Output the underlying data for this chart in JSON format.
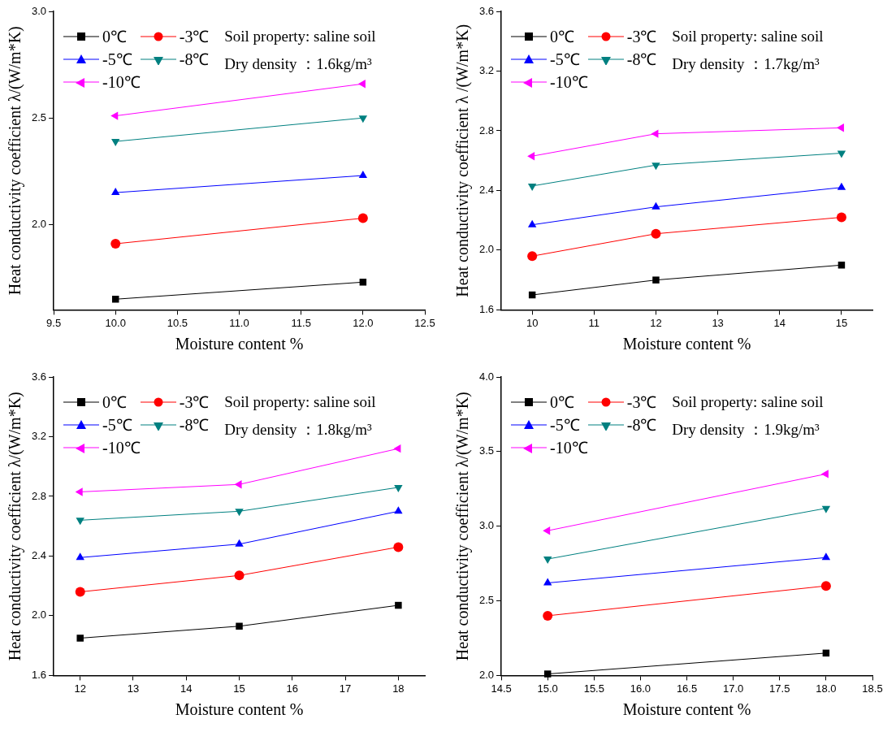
{
  "chart_data": [
    {
      "type": "line",
      "xlabel": "Moisture content %",
      "ylabel": "Heat conductivity coefficient λ/(W/m*K)",
      "x": [
        10,
        12
      ],
      "xlim": [
        9.5,
        12.5
      ],
      "xticks": [
        {
          "value": 9.5,
          "label": "9.5"
        },
        {
          "value": 10,
          "label": "10.0"
        },
        {
          "value": 10.5,
          "label": "10.5"
        },
        {
          "value": 11,
          "label": "11.0"
        },
        {
          "value": 11.5,
          "label": "11.5"
        },
        {
          "value": 12,
          "label": "12.0"
        },
        {
          "value": 12.5,
          "label": "12.5"
        }
      ],
      "ylim": [
        1.6,
        3.0
      ],
      "yticks": [
        {
          "value": 2,
          "label": "2.0"
        },
        {
          "value": 2.5,
          "label": "2.5"
        },
        {
          "value": 3,
          "label": "3.0"
        }
      ],
      "legend": "top left",
      "annotations": [
        "Soil property: saline soil",
        "Dry density ：1.6kg/m³"
      ],
      "series": [
        {
          "name": "0℃",
          "color": "#000000",
          "marker": "square",
          "values": [
            1.65,
            1.73
          ]
        },
        {
          "name": "-3℃",
          "color": "#ff0000",
          "marker": "circle",
          "values": [
            1.91,
            2.03
          ]
        },
        {
          "name": "-5℃",
          "color": "#0000ff",
          "marker": "triangle",
          "values": [
            2.15,
            2.23
          ]
        },
        {
          "name": "-8℃",
          "color": "#008080",
          "marker": "triangle-down",
          "values": [
            2.39,
            2.5
          ]
        },
        {
          "name": "-10℃",
          "color": "#ff00ff",
          "marker": "triangle-left",
          "values": [
            2.51,
            2.66
          ]
        }
      ]
    },
    {
      "type": "line",
      "xlabel": "Moisture content %",
      "ylabel": "Heat conductivity coefficient λ /(W/m*K)",
      "x": [
        10,
        12,
        15
      ],
      "xlim": [
        9.5,
        15.5
      ],
      "xticks": [
        10,
        11,
        12,
        13,
        14,
        15
      ],
      "ylim": [
        1.6,
        3.6
      ],
      "yticks": [
        1.6,
        {
          "value": 2,
          "label": "2.0"
        },
        2.4,
        2.8,
        3.2,
        3.6
      ],
      "legend": "top left",
      "annotations": [
        "Soil property: saline soil",
        "Dry density ：1.7kg/m³"
      ],
      "series": [
        {
          "name": "0℃",
          "color": "#000000",
          "marker": "square",
          "values": [
            1.7,
            1.8,
            1.9
          ]
        },
        {
          "name": "-3℃",
          "color": "#ff0000",
          "marker": "circle",
          "values": [
            1.96,
            2.11,
            2.22
          ]
        },
        {
          "name": "-5℃",
          "color": "#0000ff",
          "marker": "triangle",
          "values": [
            2.17,
            2.29,
            2.42
          ]
        },
        {
          "name": "-8℃",
          "color": "#008080",
          "marker": "triangle-down",
          "values": [
            2.43,
            2.57,
            2.65
          ]
        },
        {
          "name": "-10℃",
          "color": "#ff00ff",
          "marker": "triangle-left",
          "values": [
            2.63,
            2.78,
            2.82
          ]
        }
      ]
    },
    {
      "type": "line",
      "xlabel": "Moisture content %",
      "ylabel": "Heat conductivity coefficient λ/(W/m*K)",
      "x": [
        12,
        15,
        18
      ],
      "xlim": [
        11.5,
        18.5
      ],
      "xticks": [
        12,
        13,
        14,
        15,
        16,
        17,
        18
      ],
      "ylim": [
        1.6,
        3.6
      ],
      "yticks": [
        1.6,
        {
          "value": 2,
          "label": "2.0"
        },
        2.4,
        2.8,
        3.2,
        3.6
      ],
      "legend": "top left",
      "annotations": [
        "Soil property: saline soil",
        "Dry density ：1.8kg/m³"
      ],
      "series": [
        {
          "name": "0℃",
          "color": "#000000",
          "marker": "square",
          "values": [
            1.85,
            1.93,
            2.07
          ]
        },
        {
          "name": "-3℃",
          "color": "#ff0000",
          "marker": "circle",
          "values": [
            2.16,
            2.27,
            2.46
          ]
        },
        {
          "name": "-5℃",
          "color": "#0000ff",
          "marker": "triangle",
          "values": [
            2.39,
            2.48,
            2.7
          ]
        },
        {
          "name": "-8℃",
          "color": "#008080",
          "marker": "triangle-down",
          "values": [
            2.64,
            2.7,
            2.86
          ]
        },
        {
          "name": "-10℃",
          "color": "#ff00ff",
          "marker": "triangle-left",
          "values": [
            2.83,
            2.88,
            3.12
          ]
        }
      ]
    },
    {
      "type": "line",
      "xlabel": "Moisture content %",
      "ylabel": "Heat conductivity coefficient λ/(W/m*K)",
      "x": [
        15,
        18
      ],
      "xlim": [
        14.5,
        18.5
      ],
      "xticks": [
        14.5,
        {
          "value": 15,
          "label": "15.0"
        },
        15.5,
        {
          "value": 16,
          "label": "16.0"
        },
        16.5,
        {
          "value": 17,
          "label": "17.0"
        },
        17.5,
        {
          "value": 18,
          "label": "18.0"
        },
        18.5
      ],
      "ylim": [
        2.0,
        4.0
      ],
      "yticks": [
        {
          "value": 2,
          "label": "2.0"
        },
        2.5,
        {
          "value": 3,
          "label": "3.0"
        },
        3.5,
        {
          "value": 4,
          "label": "4.0"
        }
      ],
      "legend": "top left",
      "annotations": [
        "Soil property: saline soil",
        "Dry density ：1.9kg/m³"
      ],
      "series": [
        {
          "name": "0℃",
          "color": "#000000",
          "marker": "square",
          "values": [
            2.01,
            2.15
          ]
        },
        {
          "name": "-3℃",
          "color": "#ff0000",
          "marker": "circle",
          "values": [
            2.4,
            2.6
          ]
        },
        {
          "name": "-5℃",
          "color": "#0000ff",
          "marker": "triangle",
          "values": [
            2.62,
            2.79
          ]
        },
        {
          "name": "-8℃",
          "color": "#008080",
          "marker": "triangle-down",
          "values": [
            2.78,
            3.12
          ]
        },
        {
          "name": "-10℃",
          "color": "#ff00ff",
          "marker": "triangle-left",
          "values": [
            2.97,
            3.35
          ]
        }
      ]
    }
  ]
}
